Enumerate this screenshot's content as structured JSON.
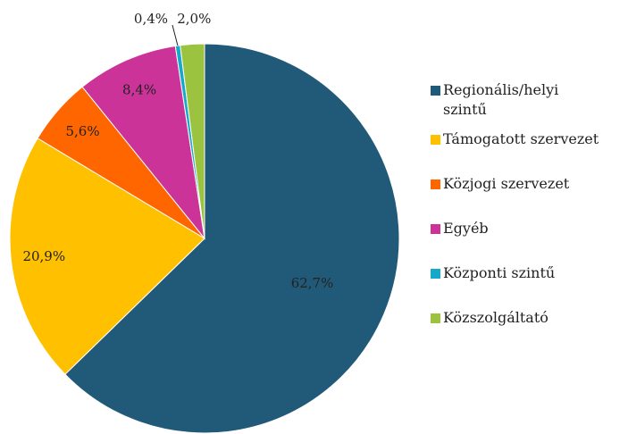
{
  "chart_data": {
    "type": "pie",
    "categories": [
      "Regionális/helyi szintű",
      "Támogatott szervezet",
      "Közjogi szervezet",
      "Egyéb",
      "Központi szintű",
      "Közszolgáltató"
    ],
    "values": [
      62.7,
      20.9,
      5.6,
      8.4,
      0.4,
      2.0
    ],
    "value_labels": [
      "62,7%",
      "20,9%",
      "5,6%",
      "8,4%",
      "0,4%",
      "2,0%"
    ],
    "colors": [
      "#215a78",
      "#ffc000",
      "#ff6600",
      "#cc3399",
      "#17a9c9",
      "#9bc33f"
    ],
    "legend": "right"
  }
}
